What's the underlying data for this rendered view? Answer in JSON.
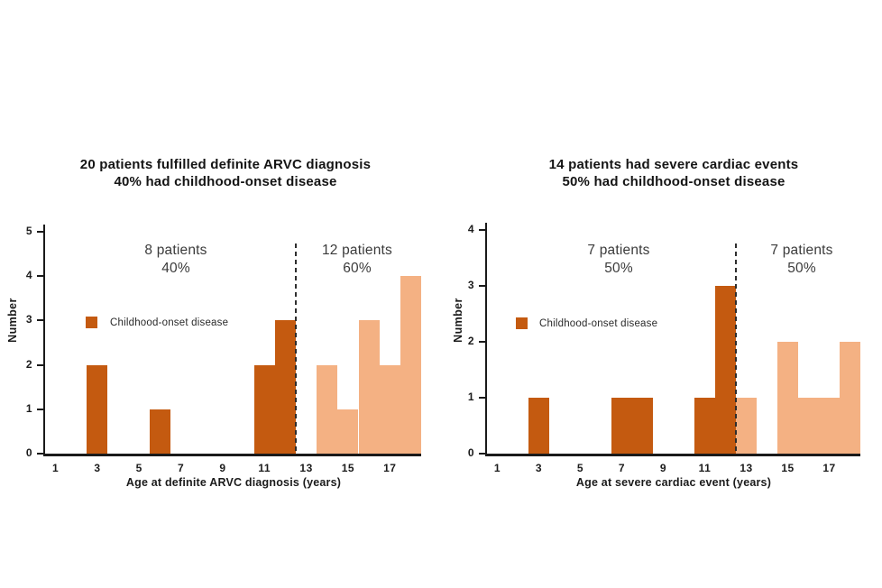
{
  "figure": {
    "background": "#ffffff"
  },
  "colors": {
    "childhood_onset": "#C45A10",
    "later_onset": "#F4B183",
    "axis": "#1a1a1a",
    "divider": "#2e2e2e",
    "title_text": "#141414",
    "annotation_text": "#3b3b3b"
  },
  "chart_data": [
    {
      "type": "bar",
      "title_line1": "20 patients fulfilled definite ARVC diagnosis",
      "title_line2": "40% had childhood-onset disease",
      "xlabel": "Age at definite ARVC diagnosis (years)",
      "ylabel": "Number",
      "ylim": [
        0,
        5
      ],
      "yticks": [
        0,
        1,
        2,
        3,
        4,
        5
      ],
      "xticks": [
        1,
        3,
        5,
        7,
        9,
        11,
        13,
        15,
        17
      ],
      "xlim": [
        0.5,
        18.5
      ],
      "bin_width_years": 1,
      "divider_age": 12.5,
      "grid": false,
      "legend": {
        "label": "Childhood-onset disease",
        "color": "#C45A10",
        "position": "middle-left"
      },
      "annotations": [
        {
          "line1": "8 patients",
          "line2": "40%"
        },
        {
          "line1": "12 patients",
          "line2": "60%"
        }
      ],
      "series": [
        {
          "group": "childhood-onset",
          "color": "#C45A10",
          "bars": [
            {
              "age": 3,
              "count": 2
            },
            {
              "age": 6,
              "count": 1
            },
            {
              "age": 11,
              "count": 2
            },
            {
              "age": 12,
              "count": 3
            }
          ]
        },
        {
          "group": "later-onset",
          "color": "#F4B183",
          "bars": [
            {
              "age": 14,
              "count": 2
            },
            {
              "age": 15,
              "count": 1
            },
            {
              "age": 16,
              "count": 3
            },
            {
              "age": 17,
              "count": 2
            },
            {
              "age": 18,
              "count": 4
            }
          ]
        }
      ]
    },
    {
      "type": "bar",
      "title_line1": "14 patients had severe cardiac events",
      "title_line2": "50% had childhood-onset disease",
      "xlabel": "Age at severe cardiac event (years)",
      "ylabel": "Number",
      "ylim": [
        0,
        4
      ],
      "yticks": [
        0,
        1,
        2,
        3,
        4
      ],
      "xticks": [
        1,
        3,
        5,
        7,
        9,
        11,
        13,
        15,
        17
      ],
      "xlim": [
        0.5,
        18.5
      ],
      "bin_width_years": 1,
      "divider_age": 12.5,
      "grid": false,
      "legend": {
        "label": "Childhood-onset disease",
        "color": "#C45A10",
        "position": "middle-left"
      },
      "annotations": [
        {
          "line1": "7 patients",
          "line2": "50%"
        },
        {
          "line1": "7 patients",
          "line2": "50%"
        }
      ],
      "series": [
        {
          "group": "childhood-onset",
          "color": "#C45A10",
          "bars": [
            {
              "age": 3,
              "count": 1
            },
            {
              "age": 7,
              "count": 1
            },
            {
              "age": 8,
              "count": 1
            },
            {
              "age": 11,
              "count": 1
            },
            {
              "age": 12,
              "count": 3
            }
          ]
        },
        {
          "group": "later-onset",
          "color": "#F4B183",
          "bars": [
            {
              "age": 13,
              "count": 1
            },
            {
              "age": 15,
              "count": 2
            },
            {
              "age": 16,
              "count": 1
            },
            {
              "age": 17,
              "count": 1
            },
            {
              "age": 18,
              "count": 2
            }
          ]
        }
      ]
    }
  ]
}
